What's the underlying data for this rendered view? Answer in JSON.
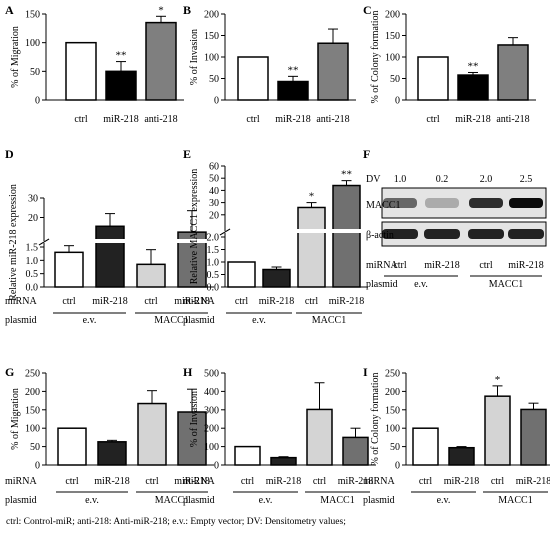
{
  "footnote": "ctrl: Control-miR; anti-218: Anti-miR-218; e.v.: Empty vector; DV: Densitometry values;",
  "colors": {
    "white": "#ffffff",
    "black": "#000000",
    "grey": "#7f7f7f",
    "lightgrey": "#d4d4d4",
    "darkgrey": "#707070",
    "darkblack": "#222222"
  },
  "chart_data": [
    {
      "panel": "A",
      "type": "bar",
      "ylabel": "% of Migration",
      "ylim": [
        0,
        150
      ],
      "yticks": [
        0,
        50,
        100,
        150
      ],
      "categories": [
        "ctrl",
        "miR-218",
        "anti-218"
      ],
      "values": [
        100,
        50,
        135
      ],
      "errors": [
        0,
        17,
        11
      ],
      "significance": [
        "",
        "**",
        "*"
      ]
    },
    {
      "panel": "B",
      "type": "bar",
      "ylabel": "% of Invasion",
      "ylim": [
        0,
        200
      ],
      "yticks": [
        0,
        50,
        100,
        150,
        200
      ],
      "categories": [
        "ctrl",
        "miR-218",
        "anti-218"
      ],
      "values": [
        100,
        43,
        132
      ],
      "errors": [
        0,
        12,
        33
      ],
      "significance": [
        "",
        "**",
        ""
      ]
    },
    {
      "panel": "C",
      "type": "bar",
      "ylabel": "% of Colony formation",
      "ylim": [
        0,
        200
      ],
      "yticks": [
        0,
        50,
        100,
        150,
        200
      ],
      "categories": [
        "ctrl",
        "miR-218",
        "anti-218"
      ],
      "values": [
        100,
        58,
        128
      ],
      "errors": [
        0,
        6,
        17
      ],
      "significance": [
        "",
        "**",
        ""
      ]
    },
    {
      "panel": "D",
      "type": "bar",
      "ylabel": "Relative miR-218 expression",
      "lower_yticks": [
        "0.0",
        "0.5",
        "1.0",
        "1.5"
      ],
      "upper_yticks": [
        "20",
        "30"
      ],
      "values": [
        1.3,
        15.5,
        0.85,
        12.5
      ],
      "errors": [
        0.25,
        6.5,
        0.55,
        11
      ],
      "significance": [
        "",
        "",
        "",
        ""
      ],
      "miRNA": [
        "ctrl",
        "miR-218",
        "ctrl",
        "miR-218"
      ],
      "plasmid": [
        "e.v.",
        "MACC1"
      ]
    },
    {
      "panel": "E",
      "type": "bar",
      "ylabel": "Relative MACC1 expression",
      "lower_yticks": [
        "0.0",
        "0.5",
        "1.0",
        "1.5",
        "2.0"
      ],
      "upper_yticks": [
        "20",
        "30",
        "40",
        "50",
        "60"
      ],
      "values": [
        1.0,
        0.7,
        26,
        44
      ],
      "errors": [
        0,
        0.1,
        4,
        4
      ],
      "significance": [
        "",
        "",
        "*",
        "**"
      ],
      "miRNA": [
        "ctrl",
        "miR-218",
        "ctrl",
        "miR-218"
      ],
      "plasmid": [
        "e.v.",
        "MACC1"
      ]
    },
    {
      "panel": "F",
      "type": "table",
      "dv_label": "DV",
      "dv_values": [
        "1.0",
        "0.2",
        "2.0",
        "2.5"
      ],
      "bands": [
        "MACC1",
        "β-actin"
      ],
      "miRNA": [
        "ctrl",
        "miR-218",
        "ctrl",
        "miR-218"
      ],
      "plasmid": [
        "e.v.",
        "MACC1"
      ]
    },
    {
      "panel": "G",
      "type": "bar",
      "ylabel": "% of Migration",
      "ylim": [
        0,
        250
      ],
      "yticks": [
        0,
        50,
        100,
        150,
        200,
        250
      ],
      "values": [
        100,
        63,
        167,
        144
      ],
      "errors": [
        0,
        4,
        35,
        62
      ],
      "significance": [
        "",
        "",
        "",
        ""
      ],
      "miRNA": [
        "ctrl",
        "miR-218",
        "ctrl",
        "miR-218"
      ],
      "plasmid": [
        "e.v.",
        "MACC1"
      ]
    },
    {
      "panel": "H",
      "type": "bar",
      "ylabel": "% of Invasion",
      "ylim": [
        0,
        500
      ],
      "yticks": [
        0,
        100,
        200,
        300,
        400,
        500
      ],
      "values": [
        100,
        40,
        302,
        150
      ],
      "errors": [
        0,
        5,
        145,
        50
      ],
      "significance": [
        "",
        "",
        "",
        ""
      ],
      "miRNA": [
        "ctrl",
        "miR-218",
        "ctrl",
        "miR-218"
      ],
      "plasmid": [
        "e.v.",
        "MACC1"
      ]
    },
    {
      "panel": "I",
      "type": "bar",
      "ylabel": "% of Colony formation",
      "ylim": [
        0,
        250
      ],
      "yticks": [
        0,
        50,
        100,
        150,
        200,
        250
      ],
      "values": [
        100,
        47,
        187,
        151
      ],
      "errors": [
        0,
        3,
        28,
        17
      ],
      "significance": [
        "",
        "",
        "*",
        ""
      ],
      "miRNA": [
        "ctrl",
        "miR-218",
        "ctrl",
        "miR-218"
      ],
      "plasmid": [
        "e.v.",
        "MACC1"
      ]
    }
  ],
  "row_labels": {
    "miRNA": "miRNA",
    "plasmid": "plasmid"
  }
}
